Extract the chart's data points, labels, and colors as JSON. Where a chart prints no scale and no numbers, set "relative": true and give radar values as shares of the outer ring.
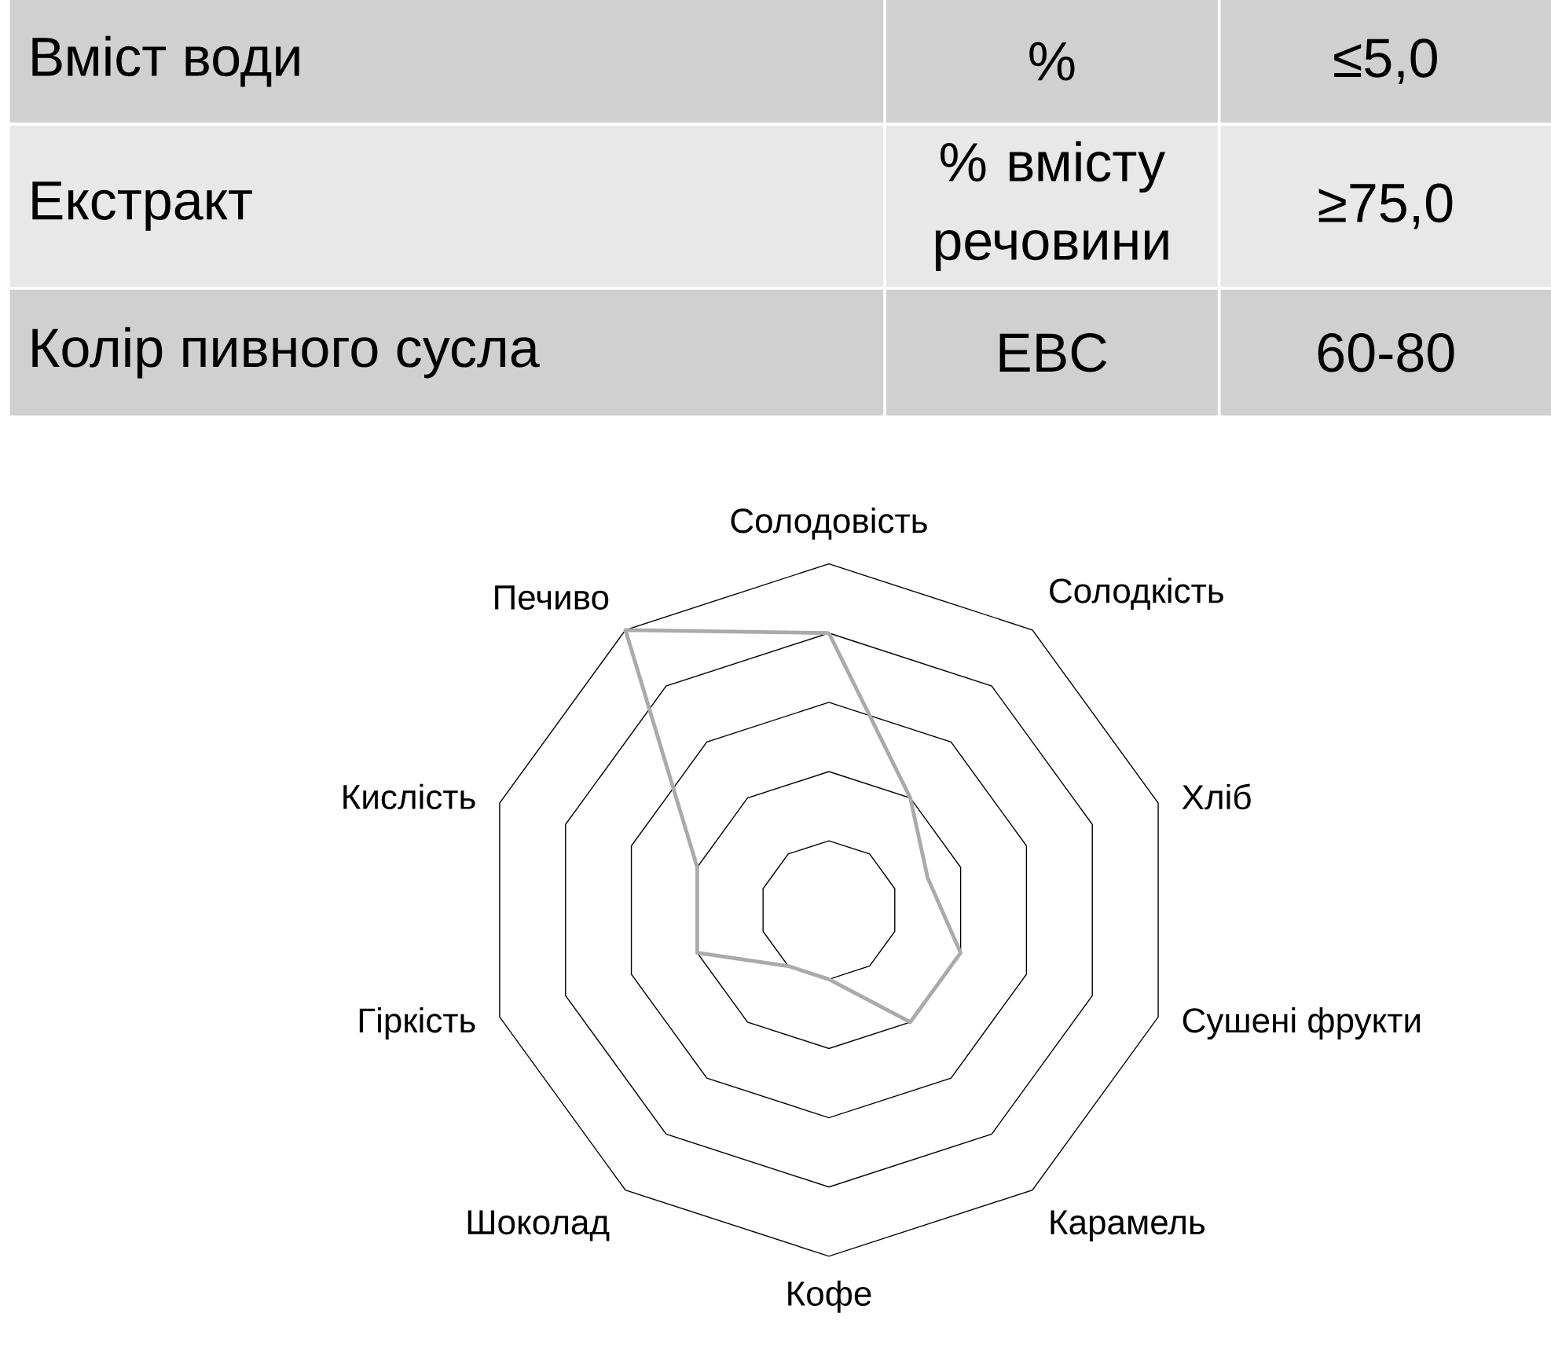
{
  "chart_data": [
    {
      "type": "other",
      "annotations": [
        "Вміст води",
        "%",
        "≤5,0",
        "Екстракт",
        "% вмісту речовини",
        "≥75,0",
        "Колір пивного сусла",
        "EBC",
        "60-80"
      ]
    },
    {
      "type": "radar",
      "relative": true,
      "grid": true,
      "categories": [
        "Солодовість",
        "Солодкість",
        "Хліб",
        "Сушені фрукти",
        "Карамель",
        "Кофе",
        "Шоколад",
        "Гіркість",
        "Кислість",
        "Печиво"
      ],
      "series": [
        {
          "color": "#aaaaaa",
          "values": [
            0.8,
            0.4,
            0.3,
            0.4,
            0.4,
            0.2,
            0.2,
            0.4,
            0.4,
            1.0
          ]
        }
      ]
    }
  ]
}
